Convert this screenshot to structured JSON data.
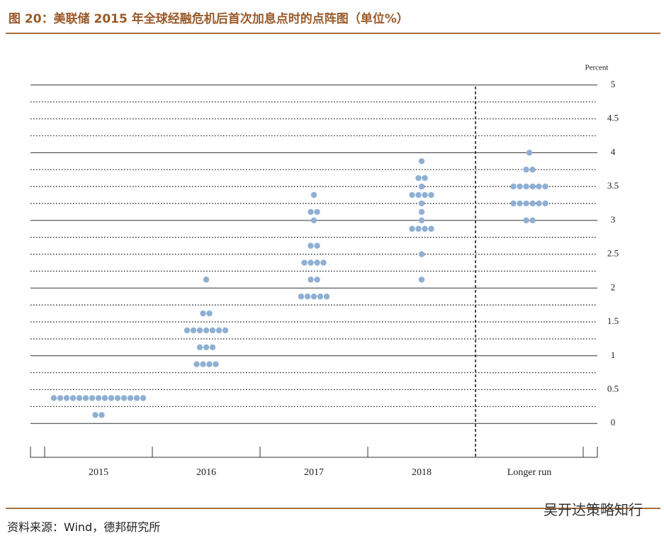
{
  "header": {
    "title": "图 20：美联储 2015 年全球经融危机后首次加息点时的点阵图（单位%）"
  },
  "footer": {
    "source": "资料来源：Wind，德邦研究所",
    "watermark": "吴开达策略知行"
  },
  "chart_data": {
    "type": "dot",
    "y_label": "Percent",
    "color": "#8fb0d3",
    "categories": [
      "2015",
      "2016",
      "2017",
      "2018",
      "Longer run"
    ],
    "dots": [
      [
        {
          "value": 0.375,
          "count": 15
        },
        {
          "value": 0.125,
          "count": 2
        }
      ],
      [
        {
          "value": 2.125,
          "count": 1
        },
        {
          "value": 1.625,
          "count": 2
        },
        {
          "value": 1.375,
          "count": 7
        },
        {
          "value": 1.125,
          "count": 3
        },
        {
          "value": 0.875,
          "count": 4
        }
      ],
      [
        {
          "value": 3.375,
          "count": 1
        },
        {
          "value": 3.125,
          "count": 2
        },
        {
          "value": 3.0,
          "count": 1
        },
        {
          "value": 2.625,
          "count": 2
        },
        {
          "value": 2.375,
          "count": 4
        },
        {
          "value": 2.125,
          "count": 2
        },
        {
          "value": 1.875,
          "count": 5
        }
      ],
      [
        {
          "value": 3.875,
          "count": 1
        },
        {
          "value": 3.625,
          "count": 2
        },
        {
          "value": 3.5,
          "count": 1
        },
        {
          "value": 3.375,
          "count": 4
        },
        {
          "value": 3.25,
          "count": 1
        },
        {
          "value": 3.125,
          "count": 1
        },
        {
          "value": 3.0,
          "count": 1
        },
        {
          "value": 2.875,
          "count": 4
        },
        {
          "value": 2.5,
          "count": 1
        },
        {
          "value": 2.125,
          "count": 1
        }
      ],
      [
        {
          "value": 4.0,
          "count": 1
        },
        {
          "value": 3.75,
          "count": 2
        },
        {
          "value": 3.5,
          "count": 6
        },
        {
          "value": 3.25,
          "count": 6
        },
        {
          "value": 3.0,
          "count": 2
        }
      ]
    ],
    "ylim": [
      -0.5,
      5.25
    ],
    "yticks": [
      0,
      0.5,
      1,
      1.5,
      2,
      2.5,
      3,
      3.5,
      4,
      4.5,
      5
    ],
    "ygrid_minor": [
      0.25,
      0.75,
      1.25,
      1.75,
      2.25,
      2.75,
      3.25,
      3.75,
      4.25,
      4.75
    ],
    "grid": true
  }
}
